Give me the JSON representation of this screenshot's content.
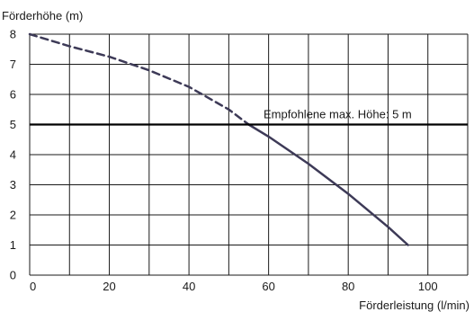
{
  "chart_data": {
    "type": "line",
    "xlabel": "Förderleistung (l/min)",
    "ylabel": "Förderhöhe (m)",
    "xlim": [
      0,
      110
    ],
    "ylim": [
      0,
      8
    ],
    "x_ticks": [
      "0",
      "20",
      "40",
      "60",
      "80",
      "100"
    ],
    "y_ticks": [
      "0",
      "1",
      "2",
      "3",
      "4",
      "5",
      "6",
      "7",
      "8"
    ],
    "grid": true,
    "series": [
      {
        "style": "dashed",
        "x": [
          0,
          10,
          20,
          30,
          40,
          50,
          55
        ],
        "y": [
          8.0,
          7.6,
          7.25,
          6.8,
          6.25,
          5.5,
          5.0
        ]
      },
      {
        "style": "solid",
        "x": [
          55,
          60,
          70,
          80,
          90,
          95
        ],
        "y": [
          5.0,
          4.6,
          3.7,
          2.7,
          1.6,
          1.0
        ]
      }
    ],
    "reference_line": {
      "y": 5,
      "label": "Empfohlene max. Höhe: 5 m"
    },
    "colors": {
      "curve": "#3d3a57",
      "grid": "#1a1a1a",
      "reference": "#000000"
    }
  }
}
